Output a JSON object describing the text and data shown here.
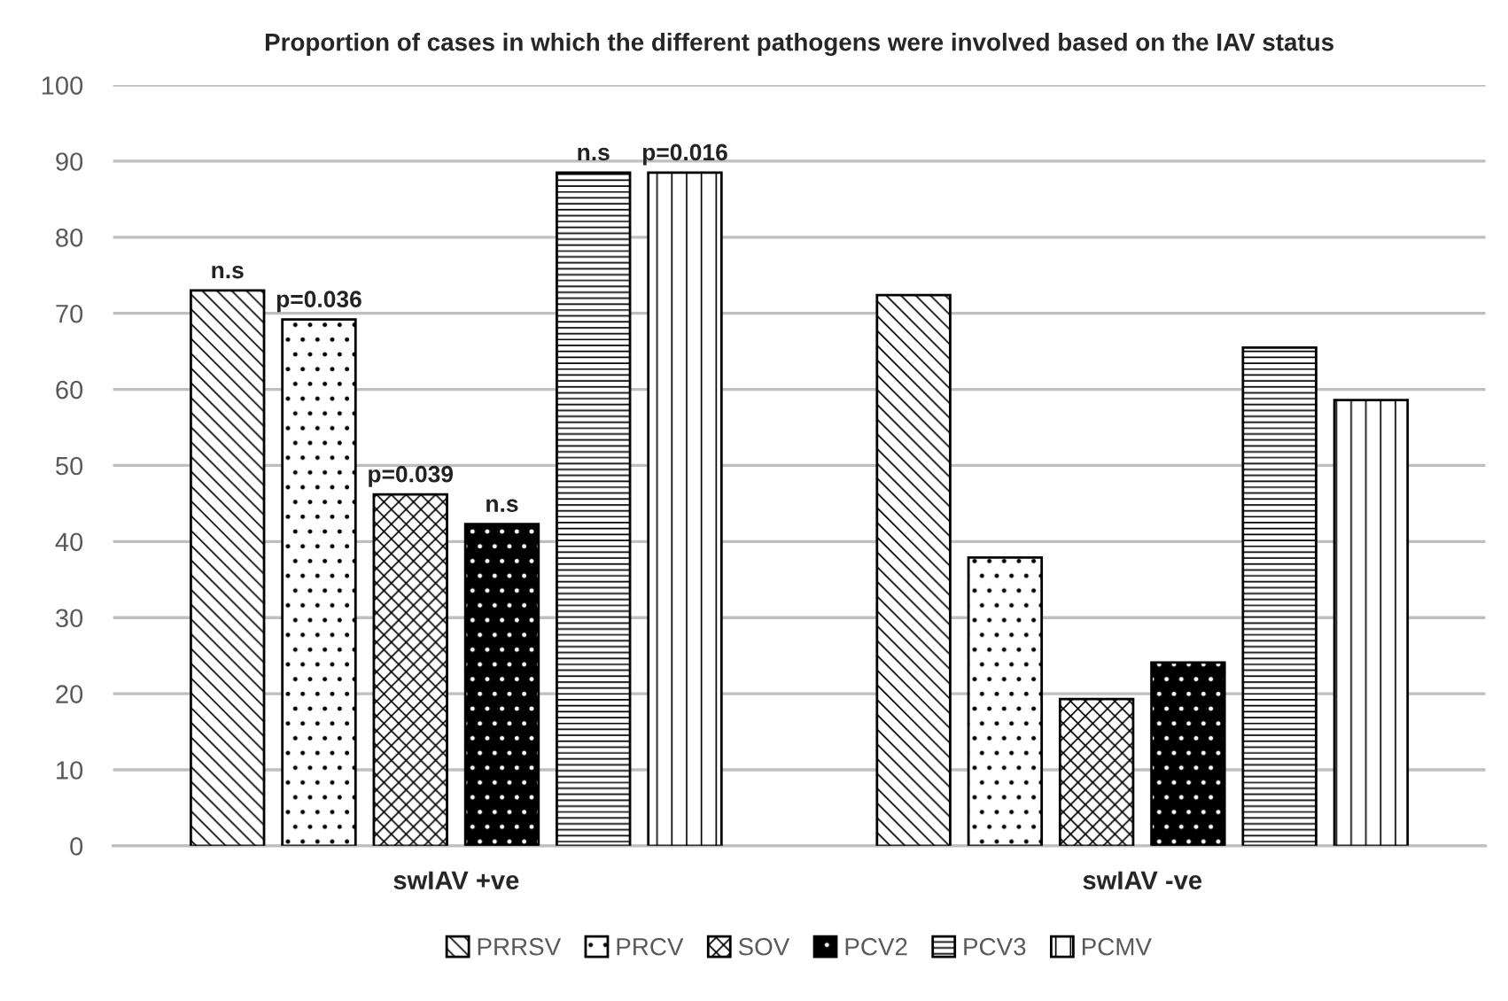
{
  "chart_data": {
    "type": "bar",
    "title": "Proportion of cases in which the different pathogens were involved based on the IAV status",
    "categories": [
      "swIAV +ve",
      "swIAV -ve"
    ],
    "series": [
      {
        "name": "PRRSV",
        "values": [
          73,
          72.4
        ]
      },
      {
        "name": "PRCV",
        "values": [
          69.2,
          37.9
        ]
      },
      {
        "name": "SOV",
        "values": [
          46.2,
          19.3
        ]
      },
      {
        "name": "PCV2",
        "color": "#000000",
        "values": [
          42.3,
          24.1
        ]
      },
      {
        "name": "PCV3",
        "values": [
          88.5,
          65.5
        ]
      },
      {
        "name": "PCMV",
        "values": [
          88.5,
          58.6
        ]
      }
    ],
    "annotations": [
      "n.s",
      "p=0.036",
      "p=0.039",
      "n.s",
      "n.s",
      "p=0.016"
    ],
    "ylim": [
      0,
      100
    ],
    "yticks": [
      0,
      10,
      20,
      30,
      40,
      50,
      60,
      70,
      80,
      90,
      100
    ],
    "grid": "y",
    "legend": "bottom"
  }
}
